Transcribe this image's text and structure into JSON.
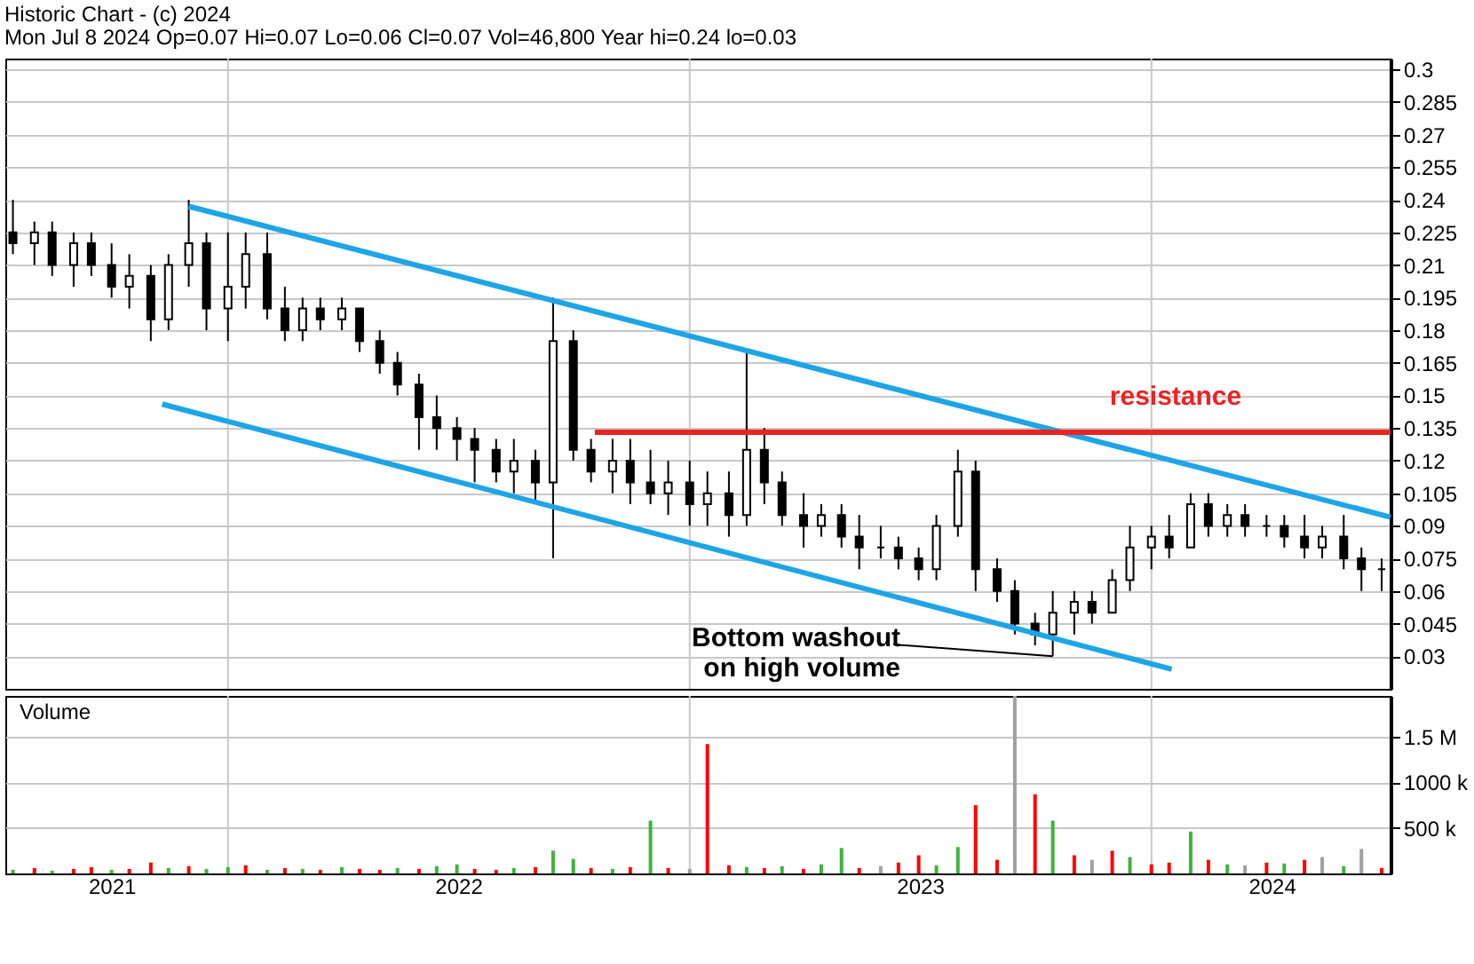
{
  "chart_data": [
    {
      "type": "candlestick",
      "title": "Historic Chart - (c) 2024",
      "subtitle": "Mon Jul  8 2024  Op=0.07  Hi=0.07  Lo=0.06  Cl=0.07  Vol=46,800  Year hi=0.24  lo=0.03",
      "x": [
        "2021-07-15",
        "2021-08-01",
        "2021-08-15",
        "2021-09-01",
        "2021-09-15",
        "2021-10-01",
        "2021-10-15",
        "2021-11-01",
        "2021-11-15",
        "2021-12-01",
        "2021-12-15",
        "2022-01-01",
        "2022-01-15",
        "2022-02-01",
        "2022-02-15",
        "2022-03-01",
        "2022-03-15",
        "2022-04-01",
        "2022-04-15",
        "2022-05-01",
        "2022-05-15",
        "2022-06-01",
        "2022-06-15",
        "2022-07-01",
        "2022-07-15",
        "2022-08-01",
        "2022-08-15",
        "2022-09-01",
        "2022-09-15",
        "2022-10-01",
        "2022-10-15",
        "2022-11-01",
        "2022-11-15",
        "2022-12-01",
        "2022-12-15",
        "2023-01-01",
        "2023-01-15",
        "2023-02-01",
        "2023-02-15",
        "2023-03-01",
        "2023-03-15",
        "2023-04-01",
        "2023-04-15",
        "2023-05-01",
        "2023-05-15",
        "2023-06-01",
        "2023-06-15",
        "2023-07-01",
        "2023-07-15",
        "2023-08-01",
        "2023-08-15",
        "2023-09-01",
        "2023-09-15",
        "2023-10-01",
        "2023-10-15",
        "2023-11-01",
        "2023-11-15",
        "2023-12-01",
        "2023-12-15",
        "2024-01-01",
        "2024-01-15",
        "2024-02-01",
        "2024-02-15",
        "2024-03-01",
        "2024-03-15",
        "2024-04-01",
        "2024-04-15",
        "2024-05-01",
        "2024-05-15",
        "2024-06-01",
        "2024-06-15",
        "2024-07-01"
      ],
      "ohlc": [
        [
          0.225,
          0.24,
          0.215,
          0.22
        ],
        [
          0.22,
          0.23,
          0.21,
          0.225
        ],
        [
          0.225,
          0.23,
          0.205,
          0.21
        ],
        [
          0.21,
          0.225,
          0.2,
          0.22
        ],
        [
          0.22,
          0.225,
          0.205,
          0.21
        ],
        [
          0.21,
          0.22,
          0.195,
          0.2
        ],
        [
          0.2,
          0.215,
          0.19,
          0.205
        ],
        [
          0.205,
          0.21,
          0.175,
          0.185
        ],
        [
          0.185,
          0.215,
          0.18,
          0.21
        ],
        [
          0.21,
          0.24,
          0.2,
          0.22
        ],
        [
          0.22,
          0.225,
          0.18,
          0.19
        ],
        [
          0.19,
          0.225,
          0.175,
          0.2
        ],
        [
          0.2,
          0.225,
          0.19,
          0.215
        ],
        [
          0.215,
          0.225,
          0.185,
          0.19
        ],
        [
          0.19,
          0.2,
          0.175,
          0.18
        ],
        [
          0.18,
          0.195,
          0.175,
          0.19
        ],
        [
          0.19,
          0.195,
          0.18,
          0.185
        ],
        [
          0.185,
          0.195,
          0.18,
          0.19
        ],
        [
          0.19,
          0.19,
          0.17,
          0.175
        ],
        [
          0.175,
          0.18,
          0.16,
          0.165
        ],
        [
          0.165,
          0.17,
          0.15,
          0.155
        ],
        [
          0.155,
          0.16,
          0.125,
          0.14
        ],
        [
          0.14,
          0.15,
          0.125,
          0.135
        ],
        [
          0.135,
          0.14,
          0.12,
          0.13
        ],
        [
          0.13,
          0.135,
          0.11,
          0.125
        ],
        [
          0.125,
          0.13,
          0.11,
          0.115
        ],
        [
          0.115,
          0.13,
          0.105,
          0.12
        ],
        [
          0.12,
          0.125,
          0.1,
          0.11
        ],
        [
          0.11,
          0.195,
          0.075,
          0.175
        ],
        [
          0.175,
          0.18,
          0.12,
          0.125
        ],
        [
          0.125,
          0.13,
          0.11,
          0.115
        ],
        [
          0.115,
          0.13,
          0.105,
          0.12
        ],
        [
          0.12,
          0.13,
          0.1,
          0.11
        ],
        [
          0.11,
          0.125,
          0.1,
          0.105
        ],
        [
          0.105,
          0.12,
          0.095,
          0.11
        ],
        [
          0.11,
          0.12,
          0.09,
          0.1
        ],
        [
          0.1,
          0.115,
          0.09,
          0.105
        ],
        [
          0.105,
          0.115,
          0.085,
          0.095
        ],
        [
          0.095,
          0.17,
          0.09,
          0.125
        ],
        [
          0.125,
          0.135,
          0.1,
          0.11
        ],
        [
          0.11,
          0.115,
          0.09,
          0.095
        ],
        [
          0.095,
          0.105,
          0.08,
          0.09
        ],
        [
          0.09,
          0.1,
          0.085,
          0.095
        ],
        [
          0.095,
          0.1,
          0.08,
          0.085
        ],
        [
          0.085,
          0.095,
          0.07,
          0.08
        ],
        [
          0.08,
          0.09,
          0.075,
          0.08
        ],
        [
          0.08,
          0.085,
          0.07,
          0.075
        ],
        [
          0.075,
          0.08,
          0.065,
          0.07
        ],
        [
          0.07,
          0.095,
          0.065,
          0.09
        ],
        [
          0.09,
          0.125,
          0.085,
          0.115
        ],
        [
          0.115,
          0.12,
          0.06,
          0.07
        ],
        [
          0.07,
          0.075,
          0.055,
          0.06
        ],
        [
          0.06,
          0.065,
          0.04,
          0.045
        ],
        [
          0.045,
          0.05,
          0.035,
          0.04
        ],
        [
          0.04,
          0.06,
          0.03,
          0.05
        ],
        [
          0.05,
          0.06,
          0.04,
          0.055
        ],
        [
          0.055,
          0.06,
          0.045,
          0.05
        ],
        [
          0.05,
          0.07,
          0.05,
          0.065
        ],
        [
          0.065,
          0.09,
          0.06,
          0.08
        ],
        [
          0.08,
          0.09,
          0.07,
          0.085
        ],
        [
          0.085,
          0.095,
          0.075,
          0.08
        ],
        [
          0.08,
          0.105,
          0.08,
          0.1
        ],
        [
          0.1,
          0.105,
          0.085,
          0.09
        ],
        [
          0.09,
          0.1,
          0.085,
          0.095
        ],
        [
          0.095,
          0.1,
          0.085,
          0.09
        ],
        [
          0.09,
          0.095,
          0.085,
          0.09
        ],
        [
          0.09,
          0.095,
          0.08,
          0.085
        ],
        [
          0.085,
          0.095,
          0.075,
          0.08
        ],
        [
          0.08,
          0.09,
          0.075,
          0.085
        ],
        [
          0.085,
          0.095,
          0.07,
          0.075
        ],
        [
          0.075,
          0.08,
          0.06,
          0.07
        ],
        [
          0.07,
          0.075,
          0.06,
          0.07
        ]
      ],
      "series": [
        {
          "type": "line",
          "color": "#1ea5e6",
          "x": [
            "2021-12-01",
            "2024-07-08"
          ],
          "values": [
            0.237,
            0.094
          ]
        },
        {
          "type": "line",
          "color": "#1ea5e6",
          "x": [
            "2021-11-10",
            "2024-01-17"
          ],
          "values": [
            0.146,
            0.024
          ]
        },
        {
          "type": "line",
          "color": "#ee2222",
          "x": [
            "2022-10-18",
            "2024-07-08"
          ],
          "values": [
            0.133,
            0.133
          ]
        }
      ],
      "annotations": [
        "resistance",
        {
          "text": "Bottom washout\non high volume",
          "x": "2023-10-15",
          "y": 0.03
        }
      ],
      "xlim": [
        "2021-07-09",
        "2024-07-08"
      ],
      "xticks": [
        {
          "value": "2022-01-01",
          "label": null
        },
        {
          "value": "2023-01-01",
          "label": null
        },
        {
          "value": "2024-01-01",
          "label": null
        }
      ],
      "ylim": [
        0.015,
        0.305
      ],
      "yticks": [
        0.03,
        0.045,
        0.06,
        0.075,
        0.09,
        0.105,
        0.12,
        0.135,
        0.15,
        0.165,
        0.18,
        0.195,
        0.21,
        0.225,
        0.24,
        0.255,
        0.27,
        0.285,
        0.3
      ],
      "grid": true,
      "tick_labels": "y"
    },
    {
      "type": "bar",
      "title": "Volume",
      "x": [
        "2021-07-15",
        "2021-08-01",
        "2021-08-15",
        "2021-09-01",
        "2021-09-15",
        "2021-10-01",
        "2021-10-15",
        "2021-11-01",
        "2021-11-15",
        "2021-12-01",
        "2021-12-15",
        "2022-01-01",
        "2022-01-15",
        "2022-02-01",
        "2022-02-15",
        "2022-03-01",
        "2022-03-15",
        "2022-04-01",
        "2022-04-15",
        "2022-05-01",
        "2022-05-15",
        "2022-06-01",
        "2022-06-15",
        "2022-07-01",
        "2022-07-15",
        "2022-08-01",
        "2022-08-15",
        "2022-09-01",
        "2022-09-15",
        "2022-10-01",
        "2022-10-15",
        "2022-11-01",
        "2022-11-15",
        "2022-12-01",
        "2022-12-15",
        "2023-01-01",
        "2023-01-15",
        "2023-02-01",
        "2023-02-15",
        "2023-03-01",
        "2023-03-15",
        "2023-04-01",
        "2023-04-15",
        "2023-05-01",
        "2023-05-15",
        "2023-06-01",
        "2023-06-15",
        "2023-07-01",
        "2023-07-15",
        "2023-08-01",
        "2023-08-15",
        "2023-09-01",
        "2023-09-15",
        "2023-10-01",
        "2023-10-15",
        "2023-11-01",
        "2023-11-15",
        "2023-12-01",
        "2023-12-15",
        "2024-01-01",
        "2024-01-15",
        "2024-02-01",
        "2024-02-15",
        "2024-03-01",
        "2024-03-15",
        "2024-04-01",
        "2024-04-15",
        "2024-05-01",
        "2024-05-15",
        "2024-06-01",
        "2024-06-15",
        "2024-07-01"
      ],
      "values": [
        40000,
        60000,
        30000,
        50000,
        70000,
        40000,
        50000,
        120000,
        60000,
        80000,
        50000,
        70000,
        90000,
        40000,
        60000,
        50000,
        40000,
        70000,
        50000,
        40000,
        60000,
        50000,
        80000,
        100000,
        50000,
        40000,
        60000,
        70000,
        250000,
        160000,
        60000,
        50000,
        70000,
        580000,
        60000,
        50000,
        1420000,
        90000,
        70000,
        60000,
        80000,
        50000,
        100000,
        280000,
        60000,
        80000,
        120000,
        200000,
        90000,
        290000,
        750000,
        150000,
        1950000,
        870000,
        580000,
        200000,
        150000,
        250000,
        180000,
        100000,
        120000,
        460000,
        150000,
        100000,
        90000,
        120000,
        110000,
        150000,
        180000,
        80000,
        270000,
        60000
      ],
      "colors": [
        "#3cb43c",
        "#ff0000",
        "#3cb43c",
        "#ff0000",
        "#ff0000",
        "#3cb43c",
        "#ff0000",
        "#ff0000",
        "#3cb43c",
        "#ff0000",
        "#3cb43c",
        "#3cb43c",
        "#ff0000",
        "#3cb43c",
        "#ff0000",
        "#3cb43c",
        "#ff0000",
        "#3cb43c",
        "#ff0000",
        "#ff0000",
        "#3cb43c",
        "#ff0000",
        "#3cb43c",
        "#3cb43c",
        "#ff0000",
        "#ff0000",
        "#3cb43c",
        "#ff0000",
        "#3cb43c",
        "#3cb43c",
        "#ff0000",
        "#3cb43c",
        "#ff0000",
        "#3cb43c",
        "#ff0000",
        "#a0a0a0",
        "#ff0000",
        "#ff0000",
        "#3cb43c",
        "#ff0000",
        "#3cb43c",
        "#ff0000",
        "#3cb43c",
        "#3cb43c",
        "#ff0000",
        "#a0a0a0",
        "#ff0000",
        "#ff0000",
        "#3cb43c",
        "#3cb43c",
        "#ff0000",
        "#ff0000",
        "#a0a0a0",
        "#ff0000",
        "#3cb43c",
        "#ff0000",
        "#a0a0a0",
        "#ff0000",
        "#3cb43c",
        "#ff0000",
        "#ff0000",
        "#3cb43c",
        "#ff0000",
        "#3cb43c",
        "#a0a0a0",
        "#ff0000",
        "#3cb43c",
        "#ff0000",
        "#a0a0a0",
        "#3cb43c",
        "#a0a0a0",
        "#ff0000"
      ],
      "xlim": [
        "2021-07-09",
        "2024-07-08"
      ],
      "xticks": [
        {
          "value": "2021-10-01",
          "label": "2021"
        },
        {
          "value": "2022-01-01",
          "label": null
        },
        {
          "value": "2022-07-02",
          "label": "2022"
        },
        {
          "value": "2023-01-01",
          "label": null
        },
        {
          "value": "2023-07-02",
          "label": "2023"
        },
        {
          "value": "2024-01-01",
          "label": null
        },
        {
          "value": "2024-04-05",
          "label": "2024"
        }
      ],
      "ylim": [
        0,
        1950000
      ],
      "yticks": [
        {
          "value": 500000,
          "label": "500 k"
        },
        {
          "value": 1000000,
          "label": "1000 k"
        },
        {
          "value": 1500000,
          "label": "1.5 M"
        }
      ],
      "grid": true
    }
  ]
}
